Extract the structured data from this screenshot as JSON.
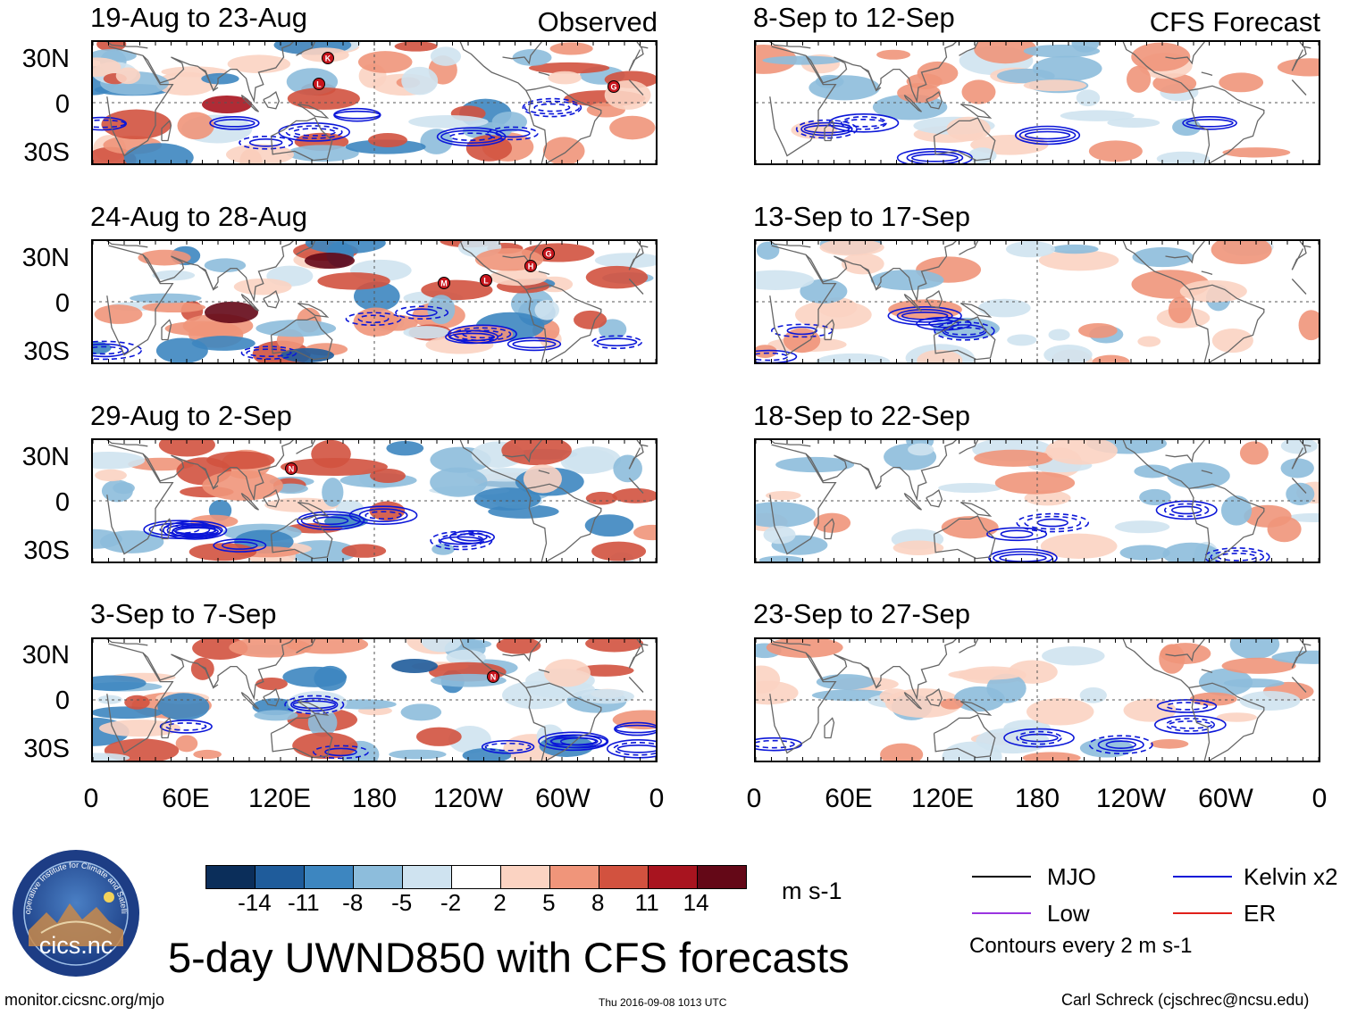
{
  "main_title": "5-day UWND850 with CFS forecasts",
  "units": "m s-1",
  "contour_note": "Contours every 2 m s-1",
  "observed_label": "Observed",
  "forecast_label": "CFS Forecast",
  "lat_labels": [
    "30N",
    "0",
    "30S"
  ],
  "lon_labels": [
    "0",
    "60E",
    "120E",
    "180",
    "120W",
    "60W",
    "0"
  ],
  "colorbar": {
    "ticks": [
      "-14",
      "-11",
      "-8",
      "-5",
      "-2",
      "2",
      "5",
      "8",
      "11",
      "14"
    ],
    "colors": [
      "#0b2e5a",
      "#1f5c9b",
      "#3d86c0",
      "#8dbddc",
      "#cfe3f0",
      "#ffffff",
      "#fbd3c2",
      "#f0957a",
      "#d2523f",
      "#a8141f",
      "#640817"
    ]
  },
  "legend": [
    {
      "label": "MJO",
      "color": "#000000"
    },
    {
      "label": "Kelvin x2",
      "color": "#0b16d8"
    },
    {
      "label": "Low",
      "color": "#9a35e0"
    },
    {
      "label": "ER",
      "color": "#e0201a"
    }
  ],
  "observed_panels": [
    {
      "title": "19-Aug to 23-Aug",
      "storms": [
        "K",
        "L",
        "G"
      ]
    },
    {
      "title": "24-Aug to 28-Aug",
      "storms": [
        "M",
        "L",
        "H",
        "G"
      ]
    },
    {
      "title": "29-Aug to 2-Sep",
      "storms": [
        "N"
      ]
    },
    {
      "title": "3-Sep to 7-Sep",
      "storms": [
        "N"
      ]
    }
  ],
  "forecast_panels": [
    {
      "title": "8-Sep to 12-Sep"
    },
    {
      "title": "13-Sep to 17-Sep"
    },
    {
      "title": "18-Sep to 22-Sep"
    },
    {
      "title": "23-Sep to 27-Sep"
    }
  ],
  "logo": {
    "text": "cics.nc",
    "ring_text": "Cooperative Institute for Climate and Satellites"
  },
  "footer": {
    "url": "monitor.cicsnc.org/mjo",
    "timestamp": "Thu 2016-09-08 1013 UTC",
    "author": "Carl Schreck (cjschrec@ncsu.edu)"
  }
}
